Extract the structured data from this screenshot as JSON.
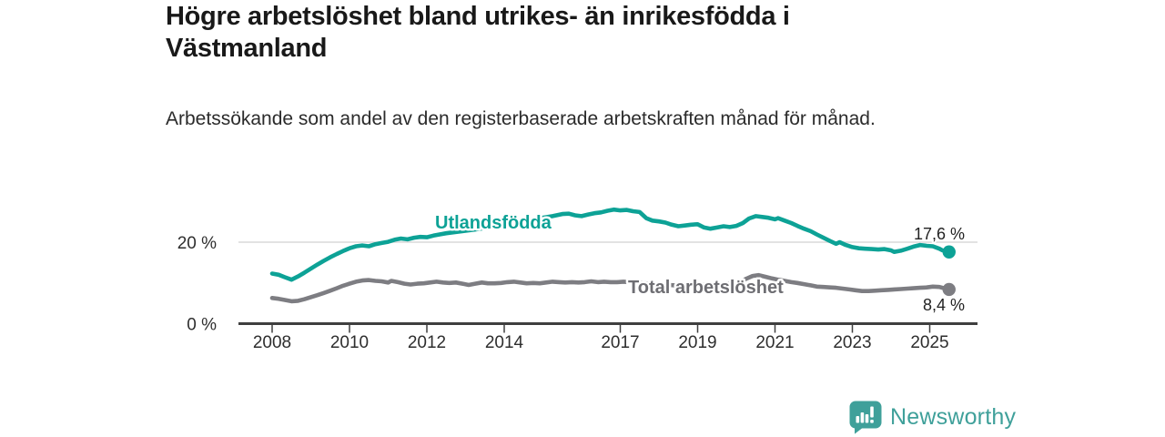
{
  "chart_data": {
    "type": "line",
    "title": "Högre arbetslöshet bland utrikes- än inrikesfödda i Västmanland",
    "subtitle": "Arbetssökande som andel av den registerbaserade arbetskraften månad för månad.",
    "unit": "%",
    "grid": "y-only",
    "legend_position": "inline-labels",
    "x_range": [
      2007.1,
      2026.3
    ],
    "y_range": [
      0,
      30.5
    ],
    "x_axis": {
      "ticks": [
        {
          "year": 2008,
          "label": "2008"
        },
        {
          "year": 2010,
          "label": "2010"
        },
        {
          "year": 2012,
          "label": "2012"
        },
        {
          "year": 2014,
          "label": "2014"
        },
        {
          "year": 2017,
          "label": "2017"
        },
        {
          "year": 2019,
          "label": "2019"
        },
        {
          "year": 2021,
          "label": "2021"
        },
        {
          "year": 2023,
          "label": "2023"
        },
        {
          "year": 2025,
          "label": "2025"
        }
      ]
    },
    "y_axis": {
      "ticks": [
        {
          "value": 0,
          "label": "0 %"
        },
        {
          "value": 20,
          "label": "20 %"
        }
      ],
      "gridlines": [
        20
      ]
    },
    "series": [
      {
        "name": "Utlandsfödda",
        "color": "#0da296",
        "label_color": "#0da296",
        "end_label": "17,6 %",
        "final_value": 17.6,
        "points": [
          [
            2008.0,
            12.3
          ],
          [
            2008.17,
            12.0
          ],
          [
            2008.33,
            11.4
          ],
          [
            2008.5,
            10.8
          ],
          [
            2008.67,
            11.6
          ],
          [
            2008.83,
            12.5
          ],
          [
            2009.0,
            13.5
          ],
          [
            2009.17,
            14.5
          ],
          [
            2009.33,
            15.4
          ],
          [
            2009.5,
            16.3
          ],
          [
            2009.67,
            17.1
          ],
          [
            2009.83,
            17.8
          ],
          [
            2010.0,
            18.5
          ],
          [
            2010.17,
            19.0
          ],
          [
            2010.33,
            19.2
          ],
          [
            2010.5,
            19.0
          ],
          [
            2010.67,
            19.5
          ],
          [
            2010.83,
            19.8
          ],
          [
            2011.0,
            20.1
          ],
          [
            2011.17,
            20.6
          ],
          [
            2011.33,
            20.9
          ],
          [
            2011.5,
            20.7
          ],
          [
            2011.67,
            21.1
          ],
          [
            2011.83,
            21.3
          ],
          [
            2012.0,
            21.2
          ],
          [
            2012.17,
            21.6
          ],
          [
            2012.33,
            21.9
          ],
          [
            2012.5,
            22.2
          ],
          [
            2012.75,
            22.5
          ],
          [
            2013.0,
            22.8
          ],
          [
            2013.25,
            23.1
          ],
          [
            2013.5,
            23.5
          ],
          [
            2013.75,
            23.9
          ],
          [
            2014.0,
            24.3
          ],
          [
            2014.25,
            24.7
          ],
          [
            2014.5,
            25.2
          ],
          [
            2014.75,
            25.6
          ],
          [
            2015.0,
            26.0
          ],
          [
            2015.25,
            26.4
          ],
          [
            2015.5,
            26.9
          ],
          [
            2015.67,
            27.0
          ],
          [
            2015.83,
            26.6
          ],
          [
            2016.0,
            26.4
          ],
          [
            2016.17,
            26.8
          ],
          [
            2016.33,
            27.1
          ],
          [
            2016.5,
            27.3
          ],
          [
            2016.67,
            27.7
          ],
          [
            2016.83,
            28.0
          ],
          [
            2017.0,
            27.8
          ],
          [
            2017.17,
            27.9
          ],
          [
            2017.33,
            27.6
          ],
          [
            2017.5,
            27.4
          ],
          [
            2017.67,
            25.9
          ],
          [
            2017.83,
            25.3
          ],
          [
            2018.0,
            25.1
          ],
          [
            2018.17,
            24.8
          ],
          [
            2018.33,
            24.3
          ],
          [
            2018.5,
            23.9
          ],
          [
            2018.67,
            24.1
          ],
          [
            2018.83,
            24.3
          ],
          [
            2019.0,
            24.4
          ],
          [
            2019.17,
            23.6
          ],
          [
            2019.33,
            23.3
          ],
          [
            2019.5,
            23.6
          ],
          [
            2019.67,
            23.9
          ],
          [
            2019.83,
            23.7
          ],
          [
            2020.0,
            24.0
          ],
          [
            2020.17,
            24.7
          ],
          [
            2020.33,
            25.8
          ],
          [
            2020.5,
            26.4
          ],
          [
            2020.67,
            26.2
          ],
          [
            2020.83,
            26.0
          ],
          [
            2021.0,
            25.6
          ],
          [
            2021.08,
            25.9
          ],
          [
            2021.25,
            25.3
          ],
          [
            2021.42,
            24.7
          ],
          [
            2021.58,
            24.0
          ],
          [
            2021.75,
            23.3
          ],
          [
            2021.92,
            22.7
          ],
          [
            2022.08,
            21.9
          ],
          [
            2022.25,
            21.1
          ],
          [
            2022.42,
            20.3
          ],
          [
            2022.58,
            19.6
          ],
          [
            2022.67,
            20.0
          ],
          [
            2022.83,
            19.3
          ],
          [
            2023.0,
            18.8
          ],
          [
            2023.17,
            18.5
          ],
          [
            2023.33,
            18.4
          ],
          [
            2023.5,
            18.3
          ],
          [
            2023.67,
            18.2
          ],
          [
            2023.83,
            18.3
          ],
          [
            2024.0,
            18.0
          ],
          [
            2024.08,
            17.6
          ],
          [
            2024.25,
            17.9
          ],
          [
            2024.42,
            18.4
          ],
          [
            2024.58,
            18.9
          ],
          [
            2024.75,
            19.3
          ],
          [
            2024.92,
            19.1
          ],
          [
            2025.08,
            19.0
          ],
          [
            2025.25,
            18.4
          ],
          [
            2025.33,
            18.0
          ],
          [
            2025.42,
            17.9
          ],
          [
            2025.5,
            17.6
          ]
        ]
      },
      {
        "name": "Total arbetslöshet",
        "color": "#7d7d82",
        "label_color": "#6e6e73",
        "end_label": "8,4 %",
        "final_value": 8.4,
        "points": [
          [
            2008.0,
            6.3
          ],
          [
            2008.17,
            6.1
          ],
          [
            2008.33,
            5.8
          ],
          [
            2008.5,
            5.5
          ],
          [
            2008.67,
            5.6
          ],
          [
            2008.83,
            6.0
          ],
          [
            2009.0,
            6.5
          ],
          [
            2009.17,
            7.0
          ],
          [
            2009.33,
            7.5
          ],
          [
            2009.5,
            8.1
          ],
          [
            2009.67,
            8.7
          ],
          [
            2009.83,
            9.3
          ],
          [
            2010.0,
            9.8
          ],
          [
            2010.17,
            10.3
          ],
          [
            2010.33,
            10.6
          ],
          [
            2010.5,
            10.7
          ],
          [
            2010.67,
            10.5
          ],
          [
            2010.83,
            10.4
          ],
          [
            2011.0,
            10.1
          ],
          [
            2011.08,
            10.5
          ],
          [
            2011.25,
            10.2
          ],
          [
            2011.42,
            9.8
          ],
          [
            2011.58,
            9.6
          ],
          [
            2011.75,
            9.8
          ],
          [
            2011.92,
            9.9
          ],
          [
            2012.08,
            10.1
          ],
          [
            2012.25,
            10.3
          ],
          [
            2012.42,
            10.1
          ],
          [
            2012.58,
            10.0
          ],
          [
            2012.75,
            10.1
          ],
          [
            2012.92,
            9.8
          ],
          [
            2013.08,
            9.5
          ],
          [
            2013.25,
            9.8
          ],
          [
            2013.42,
            10.1
          ],
          [
            2013.58,
            9.9
          ],
          [
            2013.75,
            9.9
          ],
          [
            2013.92,
            10.0
          ],
          [
            2014.08,
            10.2
          ],
          [
            2014.25,
            10.3
          ],
          [
            2014.42,
            10.1
          ],
          [
            2014.58,
            9.9
          ],
          [
            2014.75,
            10.0
          ],
          [
            2014.92,
            9.9
          ],
          [
            2015.08,
            10.1
          ],
          [
            2015.25,
            10.3
          ],
          [
            2015.42,
            10.2
          ],
          [
            2015.58,
            10.1
          ],
          [
            2015.75,
            10.2
          ],
          [
            2015.92,
            10.1
          ],
          [
            2016.08,
            10.2
          ],
          [
            2016.25,
            10.4
          ],
          [
            2016.42,
            10.2
          ],
          [
            2016.58,
            10.3
          ],
          [
            2016.75,
            10.2
          ],
          [
            2016.92,
            10.2
          ],
          [
            2017.08,
            10.3
          ],
          [
            2017.25,
            10.2
          ],
          [
            2017.42,
            10.1
          ],
          [
            2017.58,
            10.0
          ],
          [
            2017.75,
            9.8
          ],
          [
            2017.92,
            9.7
          ],
          [
            2018.08,
            9.6
          ],
          [
            2018.25,
            9.5
          ],
          [
            2018.42,
            9.4
          ],
          [
            2018.58,
            9.4
          ],
          [
            2018.75,
            9.5
          ],
          [
            2018.92,
            9.6
          ],
          [
            2019.08,
            9.6
          ],
          [
            2019.25,
            9.5
          ],
          [
            2019.42,
            9.6
          ],
          [
            2019.58,
            9.6
          ],
          [
            2019.75,
            9.8
          ],
          [
            2019.92,
            9.9
          ],
          [
            2020.08,
            10.1
          ],
          [
            2020.25,
            11.0
          ],
          [
            2020.42,
            11.7
          ],
          [
            2020.58,
            11.9
          ],
          [
            2020.75,
            11.5
          ],
          [
            2020.92,
            11.1
          ],
          [
            2021.08,
            10.8
          ],
          [
            2021.25,
            10.5
          ],
          [
            2021.42,
            10.2
          ],
          [
            2021.58,
            10.0
          ],
          [
            2021.75,
            9.7
          ],
          [
            2021.92,
            9.4
          ],
          [
            2022.08,
            9.1
          ],
          [
            2022.25,
            9.0
          ],
          [
            2022.42,
            8.9
          ],
          [
            2022.58,
            8.8
          ],
          [
            2022.75,
            8.6
          ],
          [
            2022.92,
            8.4
          ],
          [
            2023.08,
            8.2
          ],
          [
            2023.25,
            8.0
          ],
          [
            2023.42,
            8.0
          ],
          [
            2023.58,
            8.1
          ],
          [
            2023.75,
            8.2
          ],
          [
            2023.92,
            8.3
          ],
          [
            2024.08,
            8.4
          ],
          [
            2024.25,
            8.5
          ],
          [
            2024.42,
            8.6
          ],
          [
            2024.58,
            8.7
          ],
          [
            2024.75,
            8.8
          ],
          [
            2024.92,
            8.9
          ],
          [
            2025.08,
            9.1
          ],
          [
            2025.25,
            9.0
          ],
          [
            2025.33,
            8.8
          ],
          [
            2025.42,
            8.6
          ],
          [
            2025.5,
            8.4
          ]
        ]
      }
    ],
    "colors": {
      "axis": "#3f3f3f",
      "gridline": "#d8d8d8",
      "tick_text": "#2e2e2e",
      "end_label_text": "#222222"
    }
  },
  "branding": {
    "logo_text": "Newsworthy",
    "logo_color": "#3fa09a"
  }
}
